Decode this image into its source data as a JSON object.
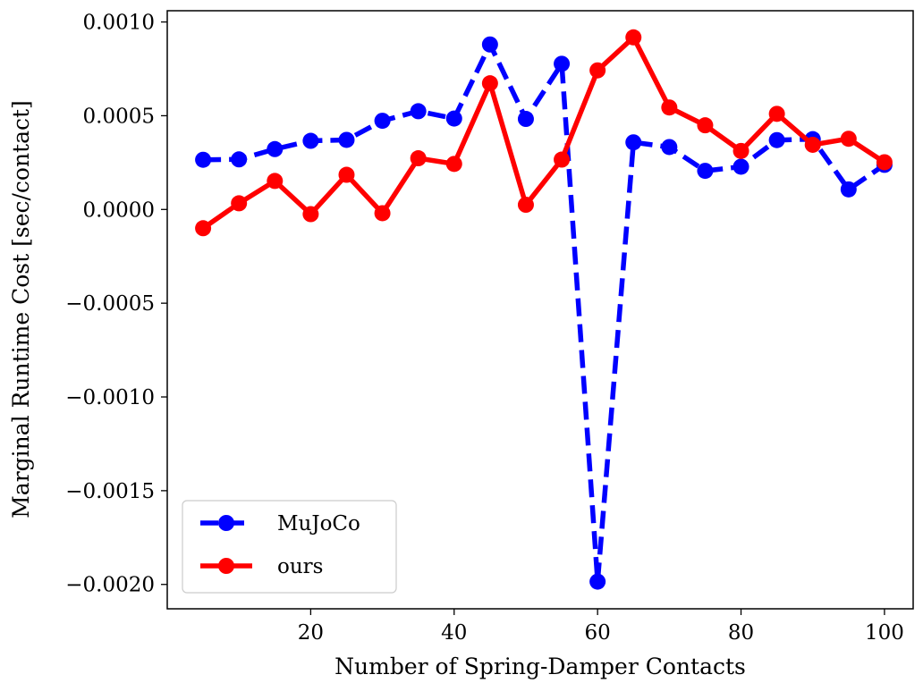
{
  "chart_data": {
    "type": "line",
    "title": "",
    "xlabel": "Number of Spring-Damper Contacts",
    "ylabel": "Marginal Runtime Cost [sec/contact]",
    "xlim": [
      0,
      104
    ],
    "ylim": [
      -0.00213,
      0.00106
    ],
    "xticks": [
      20,
      40,
      60,
      80,
      100
    ],
    "xtick_labels": [
      "20",
      "40",
      "60",
      "80",
      "100"
    ],
    "yticks": [
      0.001,
      0.0005,
      0.0,
      -0.0005,
      -0.001,
      -0.0015,
      -0.002
    ],
    "ytick_labels": [
      "0.0010",
      "0.0005",
      "0.0000",
      "−0.0005",
      "−0.0010",
      "−0.0015",
      "−0.0020"
    ],
    "grid": false,
    "legend_position": "lower-left",
    "x": [
      5,
      10,
      15,
      20,
      25,
      30,
      35,
      40,
      45,
      50,
      55,
      60,
      65,
      70,
      75,
      80,
      85,
      90,
      95,
      100
    ],
    "series": [
      {
        "name": "MuJoCo",
        "color": "#0000ff",
        "line_style": "dashed",
        "values": [
          0.000265,
          0.000267,
          0.000322,
          0.000366,
          0.000371,
          0.000473,
          0.000524,
          0.000485,
          0.00088,
          0.000483,
          0.000777,
          -0.001985,
          0.000358,
          0.000333,
          0.000206,
          0.000228,
          0.00037,
          0.000375,
          0.000107,
          0.000238
        ]
      },
      {
        "name": "ours",
        "color": "#ff0000",
        "line_style": "solid",
        "values": [
          -0.0001,
          3.3e-05,
          0.000152,
          -2.5e-05,
          0.000185,
          -2e-05,
          0.000273,
          0.000243,
          0.000673,
          2.5e-05,
          0.000266,
          0.000742,
          0.000918,
          0.000544,
          0.000449,
          0.000312,
          0.00051,
          0.000345,
          0.000377,
          0.000252
        ]
      }
    ]
  }
}
